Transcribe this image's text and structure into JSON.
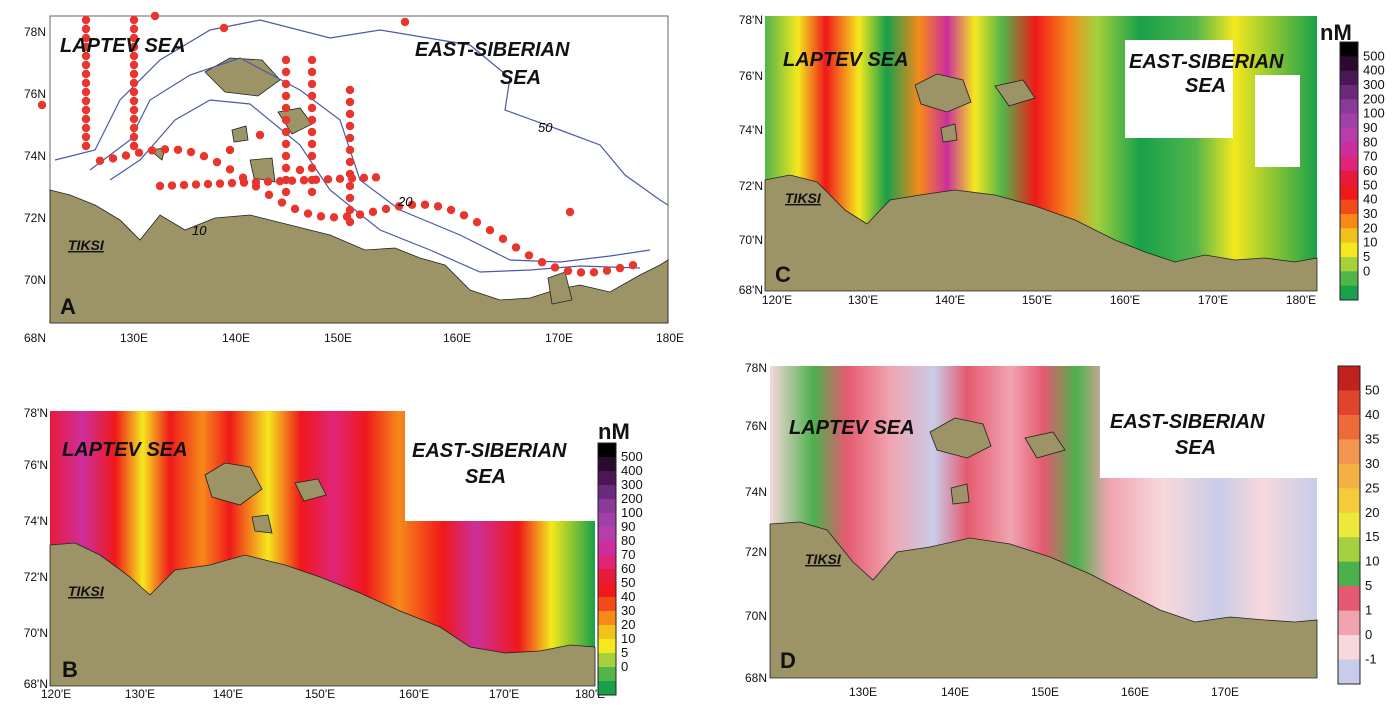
{
  "panels": {
    "A": {
      "letter": "A",
      "sea1": "LAPTEV SEA",
      "sea2a": "EAST-SIBERIAN",
      "sea2b": "SEA",
      "town": "TIKSI",
      "contours": [
        "50",
        "20",
        "10"
      ],
      "lat_ticks": [
        "78N",
        "76N",
        "74N",
        "72N",
        "70N",
        "68N"
      ],
      "lon_ticks": [
        "130E",
        "140E",
        "150E",
        "160E",
        "170E",
        "180E"
      ],
      "colors": {
        "land": "#9c9466",
        "station": "#e8352e",
        "isobath": "#4a5aa8"
      }
    },
    "B": {
      "letter": "B",
      "sea1": "LAPTEV SEA",
      "sea2a": "EAST-SIBERIAN",
      "sea2b": "SEA",
      "town": "TIKSI",
      "unit": "nM",
      "lat_ticks": [
        "78'N",
        "76'N",
        "74'N",
        "72'N",
        "70'N",
        "68'N"
      ],
      "lon_ticks": [
        "120'E",
        "130'E",
        "140'E",
        "150'E",
        "160'E",
        "170'E",
        "180'E"
      ]
    },
    "C": {
      "letter": "C",
      "sea1": "LAPTEV SEA",
      "sea2a": "EAST-SIBERIAN",
      "sea2b": "SEA",
      "town": "TIKSI",
      "unit": "nM",
      "lat_ticks": [
        "78'N",
        "76'N",
        "74'N",
        "72'N",
        "70'N",
        "68'N"
      ],
      "lon_ticks": [
        "120'E",
        "130'E",
        "140'E",
        "150'E",
        "160'E",
        "170'E",
        "180'E"
      ]
    },
    "D": {
      "letter": "D",
      "sea1": "LAPTEV SEA",
      "sea2a": "EAST-SIBERIAN",
      "sea2b": "SEA",
      "town": "TIKSI",
      "lat_ticks": [
        "78N",
        "76N",
        "74N",
        "72N",
        "70N",
        "68N"
      ],
      "lon_ticks": [
        "130E",
        "140E",
        "150E",
        "160E",
        "170E"
      ]
    }
  },
  "legend_nm": {
    "labels": [
      "500",
      "400",
      "300",
      "200",
      "100",
      "90",
      "80",
      "70",
      "60",
      "50",
      "40",
      "30",
      "20",
      "10",
      "5",
      "0"
    ],
    "colors": [
      "#000000",
      "#2a0b2e",
      "#4b1654",
      "#6a2a7a",
      "#8a3a99",
      "#a040a8",
      "#b83cac",
      "#cc2f9c",
      "#e02478",
      "#e81a3c",
      "#f0181a",
      "#f24a18",
      "#f6891a",
      "#f2c21c",
      "#f4e81e",
      "#a6d13c",
      "#52b54a",
      "#18a04a"
    ]
  },
  "legend_d": {
    "labels": [
      "50",
      "40",
      "35",
      "30",
      "25",
      "20",
      "15",
      "10",
      "5",
      "1",
      "0",
      "-1"
    ],
    "colors": [
      "#c0221c",
      "#e0442a",
      "#ef6a3a",
      "#f39650",
      "#f4b044",
      "#f4cc3a",
      "#eee83c",
      "#a6d040",
      "#4cb04c",
      "#e55a70",
      "#f0a4b0",
      "#f7d8dc",
      "#c8cce8"
    ]
  }
}
